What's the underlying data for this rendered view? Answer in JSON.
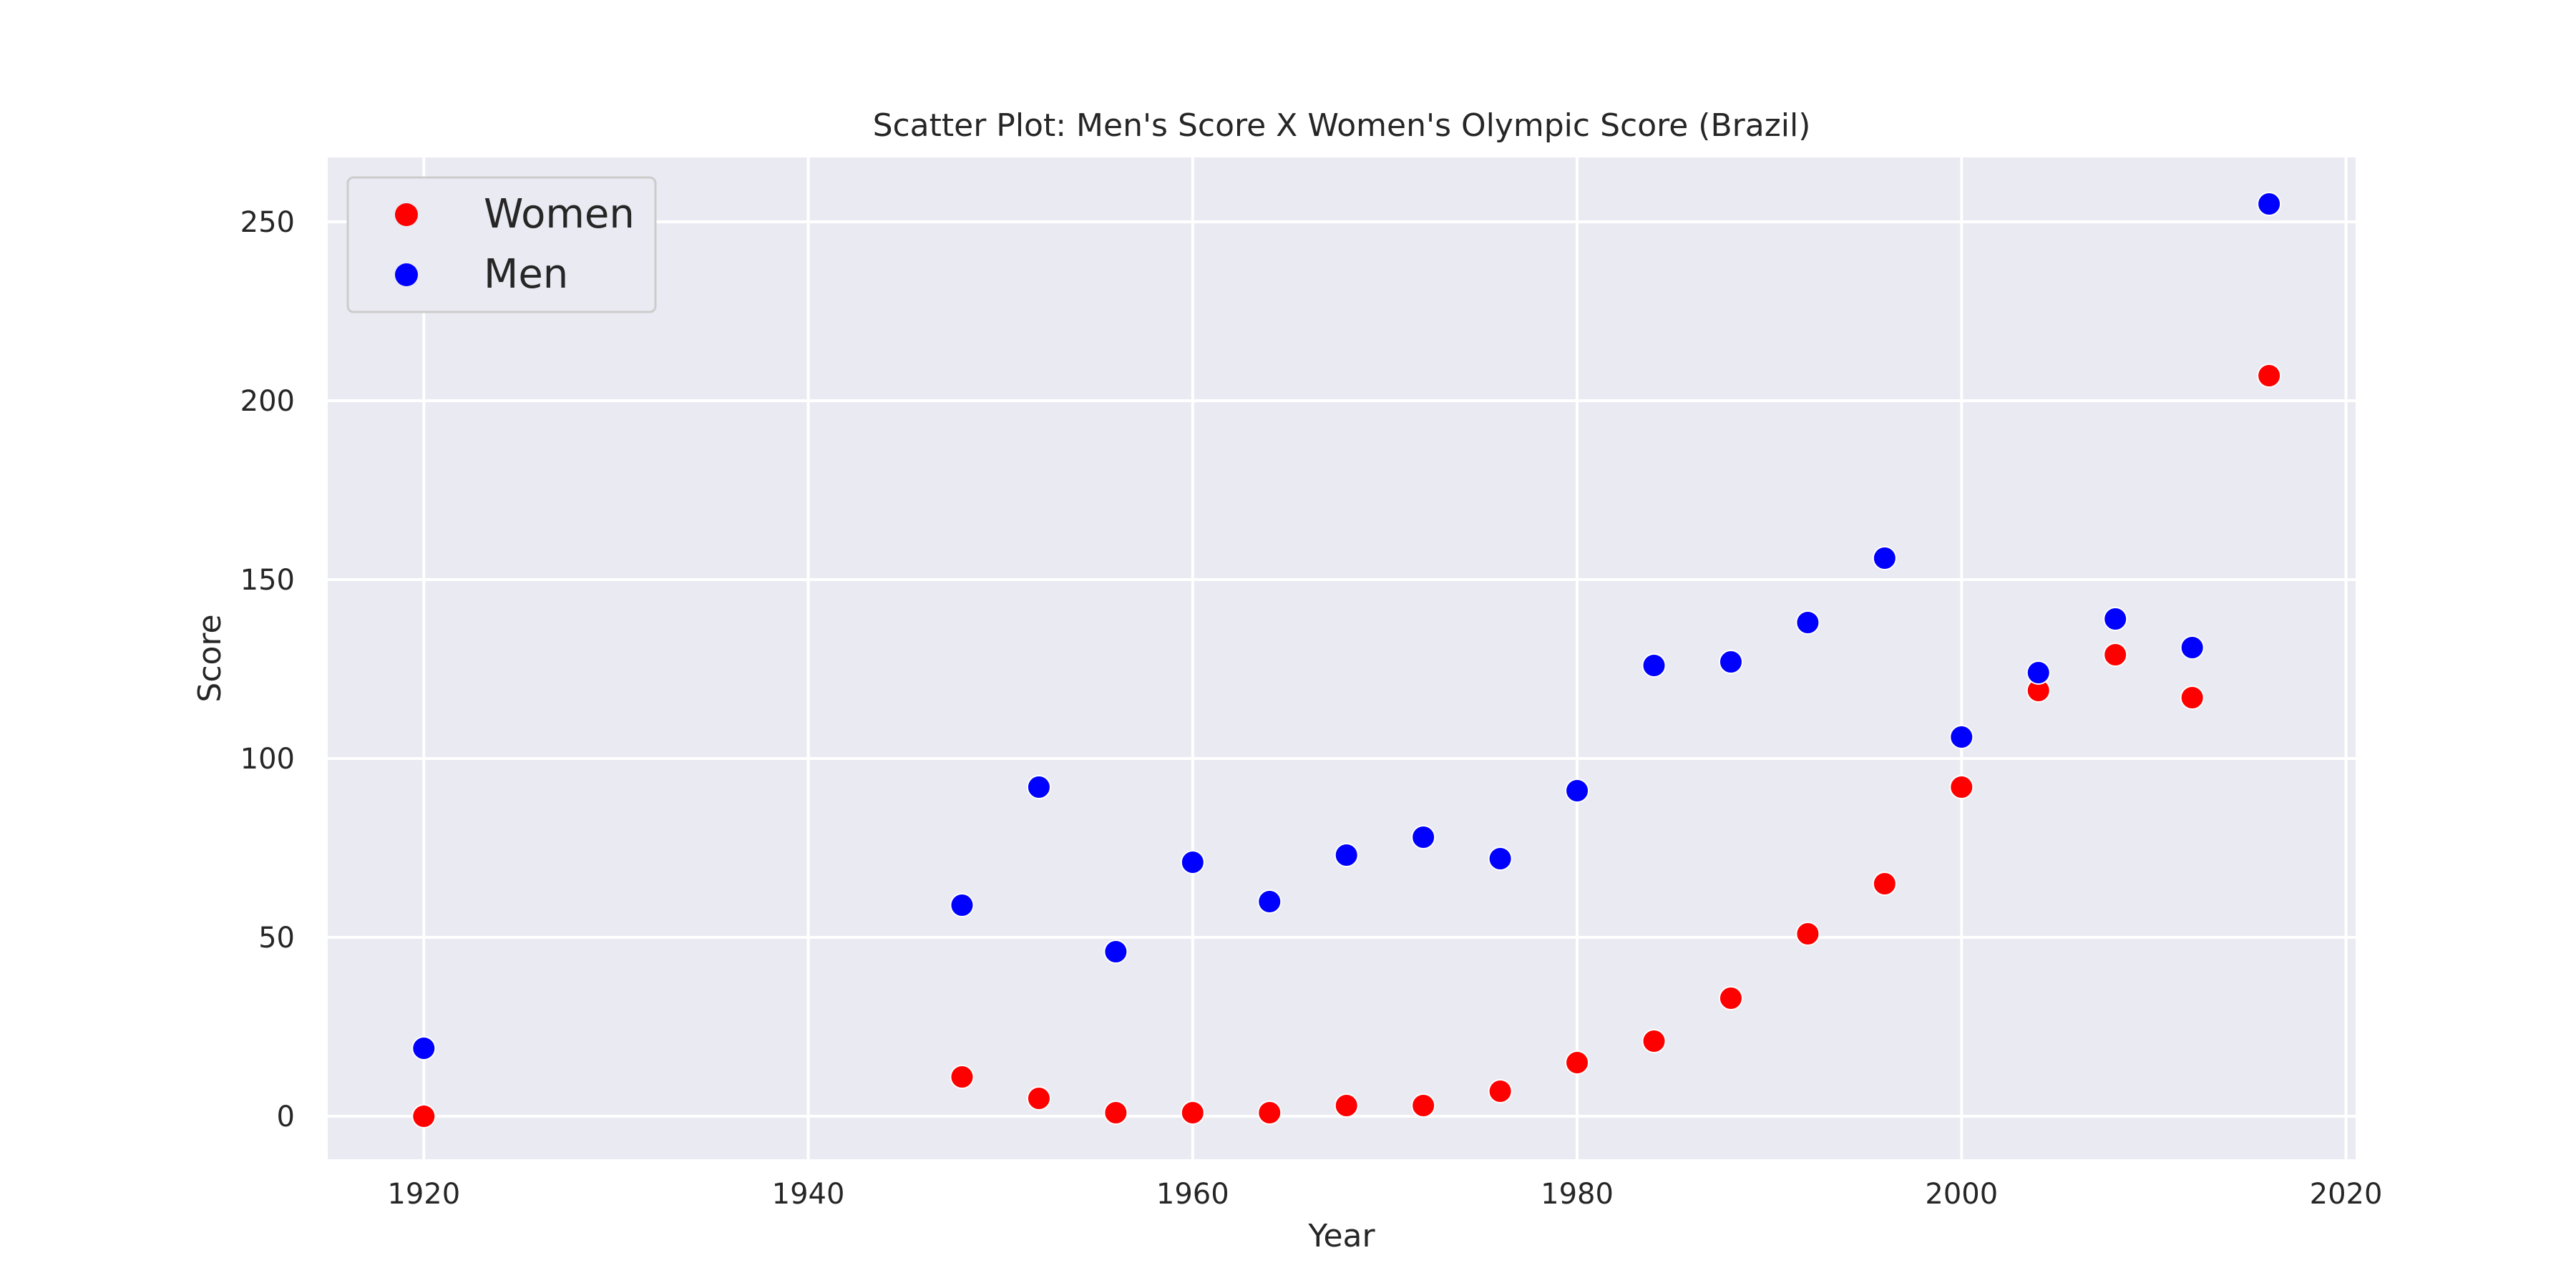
{
  "chart_data": {
    "type": "scatter",
    "title": "Scatter Plot: Men's Score X Women's Olympic Score (Brazil)",
    "xlabel": "Year",
    "ylabel": "Score",
    "xlim": [
      1915,
      2020.5
    ],
    "ylim": [
      -12,
      268
    ],
    "xticks": [
      1920,
      1940,
      1960,
      1980,
      2000,
      2020
    ],
    "yticks": [
      0,
      50,
      100,
      150,
      200,
      250
    ],
    "grid": true,
    "legend_position": "top-left",
    "background": "#eaeaf2",
    "series": [
      {
        "name": "Women",
        "color": "#ff0000",
        "x": [
          1920,
          1948,
          1952,
          1956,
          1960,
          1964,
          1968,
          1972,
          1976,
          1980,
          1984,
          1988,
          1992,
          1996,
          2000,
          2004,
          2008,
          2012,
          2016
        ],
        "y": [
          0,
          11,
          5,
          1,
          1,
          1,
          3,
          3,
          7,
          15,
          21,
          33,
          51,
          65,
          92,
          119,
          129,
          117,
          207
        ]
      },
      {
        "name": "Men",
        "color": "#0000ff",
        "x": [
          1920,
          1948,
          1952,
          1956,
          1960,
          1964,
          1968,
          1972,
          1976,
          1980,
          1984,
          1988,
          1992,
          1996,
          2000,
          2004,
          2008,
          2012,
          2016
        ],
        "y": [
          19,
          59,
          92,
          46,
          71,
          60,
          73,
          78,
          72,
          91,
          126,
          127,
          138,
          156,
          106,
          124,
          139,
          131,
          255
        ]
      }
    ]
  }
}
